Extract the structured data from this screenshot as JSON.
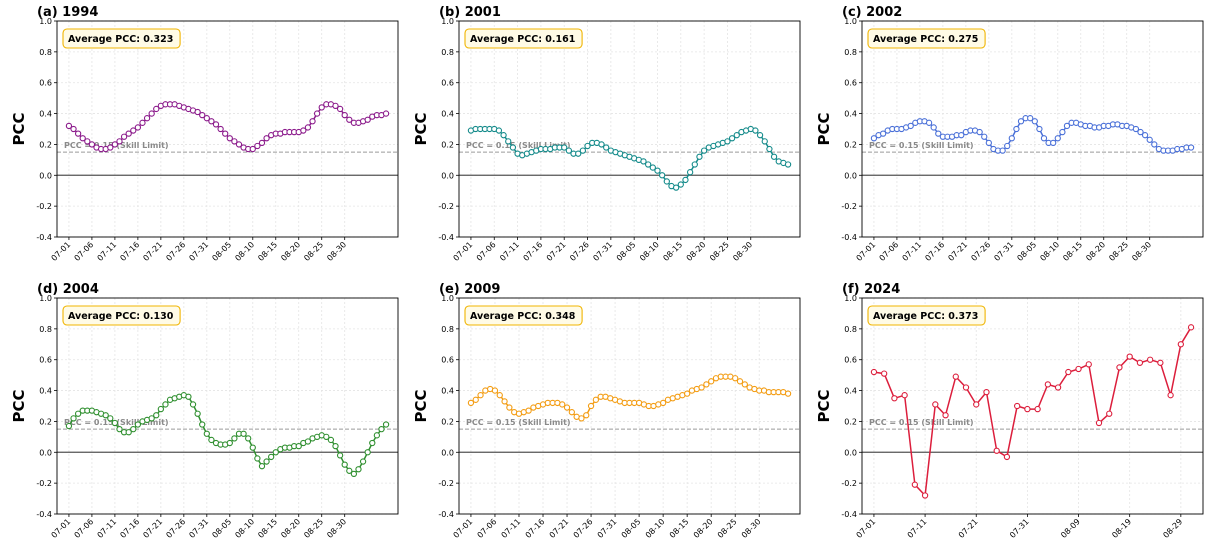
{
  "chart_data": [
    {
      "type": "line",
      "title": "(a) 1994",
      "ylabel": "PCC",
      "annotation": "Average PCC: 0.323",
      "reference_line": {
        "y": 0.15,
        "label": "PCC = 0.15 (Skill Limit)"
      },
      "color": "#8b1a8b",
      "ylim": [
        -0.4,
        1.0
      ],
      "yticks": [
        -0.4,
        -0.2,
        0.0,
        0.2,
        0.4,
        0.6,
        0.8,
        1.0
      ],
      "x_ticks": [
        "07-01",
        "07-06",
        "07-11",
        "07-16",
        "07-21",
        "07-26",
        "07-31",
        "08-05",
        "08-10",
        "08-15",
        "08-20",
        "08-25",
        "08-30"
      ],
      "tick_step": 5,
      "grid": true,
      "series": [
        {
          "values": [
            0.32,
            0.3,
            0.27,
            0.24,
            0.22,
            0.2,
            0.18,
            0.17,
            0.17,
            0.18,
            0.2,
            0.22,
            0.25,
            0.27,
            0.29,
            0.31,
            0.34,
            0.37,
            0.4,
            0.43,
            0.45,
            0.46,
            0.46,
            0.46,
            0.45,
            0.44,
            0.43,
            0.42,
            0.41,
            0.39,
            0.37,
            0.35,
            0.33,
            0.3,
            0.27,
            0.24,
            0.22,
            0.2,
            0.18,
            0.17,
            0.17,
            0.19,
            0.21,
            0.24,
            0.26,
            0.27,
            0.27,
            0.28,
            0.28,
            0.28,
            0.28,
            0.29,
            0.31,
            0.35,
            0.4,
            0.44,
            0.46,
            0.46,
            0.45,
            0.43,
            0.39,
            0.36,
            0.34,
            0.34,
            0.35,
            0.36,
            0.38,
            0.39,
            0.39,
            0.4
          ]
        }
      ]
    },
    {
      "type": "line",
      "title": "(b) 2001",
      "ylabel": "PCC",
      "annotation": "Average PCC: 0.161",
      "reference_line": {
        "y": 0.15,
        "label": "PCC = 0.15 (Skill Limit)"
      },
      "color": "#138a8a",
      "ylim": [
        -0.4,
        1.0
      ],
      "yticks": [
        -0.4,
        -0.2,
        0.0,
        0.2,
        0.4,
        0.6,
        0.8,
        1.0
      ],
      "x_ticks": [
        "07-01",
        "07-06",
        "07-11",
        "07-16",
        "07-21",
        "07-26",
        "07-31",
        "08-05",
        "08-10",
        "08-15",
        "08-20",
        "08-25",
        "08-30"
      ],
      "tick_step": 5,
      "grid": true,
      "series": [
        {
          "values": [
            0.29,
            0.3,
            0.3,
            0.3,
            0.3,
            0.3,
            0.29,
            0.26,
            0.22,
            0.18,
            0.14,
            0.13,
            0.14,
            0.15,
            0.16,
            0.17,
            0.17,
            0.17,
            0.18,
            0.18,
            0.18,
            0.16,
            0.14,
            0.14,
            0.16,
            0.19,
            0.21,
            0.21,
            0.2,
            0.18,
            0.16,
            0.15,
            0.14,
            0.13,
            0.12,
            0.11,
            0.1,
            0.09,
            0.07,
            0.05,
            0.03,
            0.0,
            -0.04,
            -0.07,
            -0.08,
            -0.06,
            -0.03,
            0.02,
            0.07,
            0.12,
            0.16,
            0.18,
            0.19,
            0.2,
            0.21,
            0.22,
            0.24,
            0.26,
            0.28,
            0.29,
            0.3,
            0.29,
            0.26,
            0.22,
            0.17,
            0.12,
            0.09,
            0.08,
            0.07
          ]
        }
      ]
    },
    {
      "type": "line",
      "title": "(c) 2002",
      "ylabel": "PCC",
      "annotation": "Average PCC: 0.275",
      "reference_line": {
        "y": 0.15,
        "label": "PCC = 0.15 (Skill Limit)"
      },
      "color": "#4a70d8",
      "ylim": [
        -0.4,
        1.0
      ],
      "yticks": [
        -0.4,
        -0.2,
        0.0,
        0.2,
        0.4,
        0.6,
        0.8,
        1.0
      ],
      "x_ticks": [
        "07-01",
        "07-06",
        "07-11",
        "07-16",
        "07-21",
        "07-26",
        "07-31",
        "08-05",
        "08-10",
        "08-15",
        "08-20",
        "08-25",
        "08-30"
      ],
      "tick_step": 5,
      "grid": true,
      "series": [
        {
          "values": [
            0.24,
            0.26,
            0.27,
            0.29,
            0.3,
            0.3,
            0.3,
            0.31,
            0.32,
            0.34,
            0.35,
            0.35,
            0.34,
            0.31,
            0.27,
            0.25,
            0.25,
            0.25,
            0.26,
            0.26,
            0.28,
            0.29,
            0.29,
            0.28,
            0.25,
            0.21,
            0.17,
            0.16,
            0.16,
            0.19,
            0.24,
            0.3,
            0.35,
            0.37,
            0.37,
            0.35,
            0.3,
            0.24,
            0.21,
            0.21,
            0.24,
            0.28,
            0.32,
            0.34,
            0.34,
            0.33,
            0.32,
            0.32,
            0.31,
            0.31,
            0.32,
            0.32,
            0.33,
            0.33,
            0.32,
            0.32,
            0.31,
            0.3,
            0.28,
            0.26,
            0.23,
            0.2,
            0.17,
            0.16,
            0.16,
            0.16,
            0.17,
            0.17,
            0.18,
            0.18
          ]
        }
      ]
    },
    {
      "type": "line",
      "title": "(d) 2004",
      "ylabel": "PCC",
      "annotation": "Average PCC: 0.130",
      "reference_line": {
        "y": 0.15,
        "label": "PCC = 0.15 (Skill Limit)"
      },
      "color": "#2f8f2f",
      "ylim": [
        -0.4,
        1.0
      ],
      "yticks": [
        -0.4,
        -0.2,
        0.0,
        0.2,
        0.4,
        0.6,
        0.8,
        1.0
      ],
      "x_ticks": [
        "07-01",
        "07-06",
        "07-11",
        "07-16",
        "07-21",
        "07-26",
        "07-31",
        "08-05",
        "08-10",
        "08-15",
        "08-20",
        "08-25",
        "08-30"
      ],
      "tick_step": 5,
      "grid": true,
      "series": [
        {
          "values": [
            0.17,
            0.22,
            0.25,
            0.27,
            0.27,
            0.27,
            0.26,
            0.25,
            0.24,
            0.22,
            0.19,
            0.15,
            0.13,
            0.13,
            0.15,
            0.18,
            0.2,
            0.21,
            0.22,
            0.24,
            0.28,
            0.31,
            0.34,
            0.35,
            0.36,
            0.37,
            0.36,
            0.31,
            0.25,
            0.18,
            0.12,
            0.08,
            0.06,
            0.05,
            0.05,
            0.06,
            0.09,
            0.12,
            0.12,
            0.09,
            0.03,
            -0.04,
            -0.09,
            -0.06,
            -0.03,
            0.0,
            0.02,
            0.03,
            0.03,
            0.04,
            0.04,
            0.06,
            0.07,
            0.09,
            0.1,
            0.11,
            0.1,
            0.08,
            0.04,
            -0.02,
            -0.08,
            -0.12,
            -0.14,
            -0.11,
            -0.06,
            0.0,
            0.06,
            0.11,
            0.15,
            0.18
          ]
        }
      ]
    },
    {
      "type": "line",
      "title": "(e) 2009",
      "ylabel": "PCC",
      "annotation": "Average PCC: 0.348",
      "reference_line": {
        "y": 0.15,
        "label": "PCC = 0.15 (Skill Limit)"
      },
      "color": "#f39c12",
      "ylim": [
        -0.4,
        1.0
      ],
      "yticks": [
        -0.4,
        -0.2,
        0.0,
        0.2,
        0.4,
        0.6,
        0.8,
        1.0
      ],
      "x_ticks": [
        "07-01",
        "07-06",
        "07-11",
        "07-16",
        "07-21",
        "07-26",
        "07-31",
        "08-05",
        "08-10",
        "08-15",
        "08-20",
        "08-25",
        "08-30"
      ],
      "tick_step": 5,
      "grid": true,
      "series": [
        {
          "values": [
            0.32,
            0.34,
            0.37,
            0.4,
            0.41,
            0.4,
            0.37,
            0.33,
            0.29,
            0.26,
            0.25,
            0.26,
            0.27,
            0.29,
            0.3,
            0.31,
            0.32,
            0.32,
            0.32,
            0.31,
            0.29,
            0.26,
            0.23,
            0.22,
            0.24,
            0.3,
            0.34,
            0.36,
            0.36,
            0.35,
            0.34,
            0.33,
            0.32,
            0.32,
            0.32,
            0.32,
            0.31,
            0.3,
            0.3,
            0.31,
            0.32,
            0.34,
            0.35,
            0.36,
            0.37,
            0.38,
            0.4,
            0.41,
            0.42,
            0.44,
            0.46,
            0.48,
            0.49,
            0.49,
            0.49,
            0.48,
            0.46,
            0.44,
            0.42,
            0.41,
            0.4,
            0.4,
            0.39,
            0.39,
            0.39,
            0.39,
            0.38
          ]
        }
      ]
    },
    {
      "type": "line",
      "title": "(f) 2024",
      "ylabel": "PCC",
      "annotation": "Average PCC: 0.373",
      "reference_line": {
        "y": 0.15,
        "label": "PCC = 0.15 (Skill Limit)"
      },
      "color": "#dc1e3c",
      "ylim": [
        -0.4,
        1.0
      ],
      "yticks": [
        -0.4,
        -0.2,
        0.0,
        0.2,
        0.4,
        0.6,
        0.8,
        1.0
      ],
      "x_ticks": [
        "07-01",
        "07-11",
        "07-21",
        "07-31",
        "08-09",
        "08-19",
        "08-29"
      ],
      "tick_step": 5,
      "grid": true,
      "series": [
        {
          "values": [
            0.52,
            0.51,
            0.35,
            0.37,
            -0.21,
            -0.28,
            0.31,
            0.24,
            0.49,
            0.42,
            0.31,
            0.39,
            0.01,
            -0.03,
            0.3,
            0.28,
            0.28,
            0.44,
            0.42,
            0.52,
            0.54,
            0.57,
            0.19,
            0.25,
            0.55,
            0.62,
            0.58,
            0.6,
            0.58,
            0.37,
            0.7,
            0.81
          ]
        }
      ]
    }
  ]
}
